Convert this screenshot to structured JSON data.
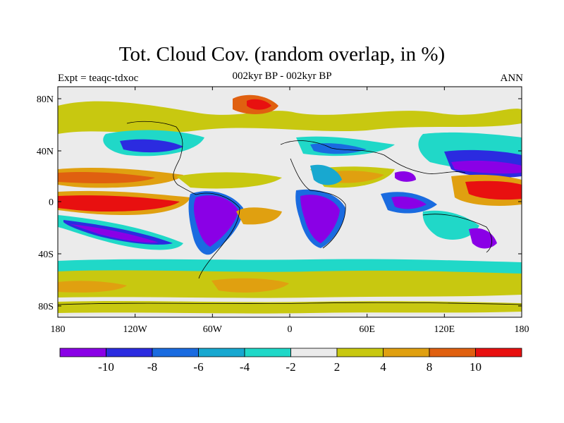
{
  "title": "Tot. Cloud Cov. (random overlap, in %)",
  "subtitle_left": "Expt = teaqc-tdxoc",
  "subtitle_center": "002kyr BP - 002kyr BP",
  "subtitle_right": "ANN",
  "map": {
    "lon_ticks": [
      "180",
      "120W",
      "60W",
      "0",
      "60E",
      "120E",
      "180"
    ],
    "lat_ticks": [
      "80N",
      "40N",
      "0",
      "40S",
      "80S"
    ],
    "lon_range": [
      -180,
      180
    ],
    "lat_range": [
      -90,
      90
    ]
  },
  "colorbar": {
    "colors": [
      "#8a00e6",
      "#2b2be0",
      "#1a6be0",
      "#18a8d0",
      "#20d8c8",
      "#ebebeb",
      "#c8c810",
      "#e0a010",
      "#e06010",
      "#e81010"
    ],
    "labels": [
      "-10",
      "-8",
      "-6",
      "-4",
      "-2",
      "2",
      "4",
      "8",
      "10"
    ]
  },
  "colors": {
    "neutral": "#ebebeb",
    "coast": "#000000"
  }
}
